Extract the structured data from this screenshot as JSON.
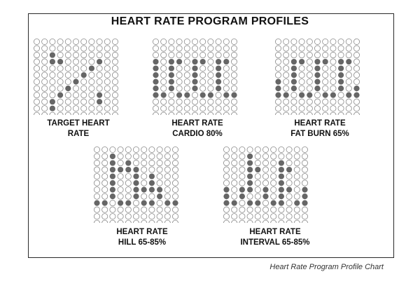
{
  "title": "HEART RATE PROGRAM PROFILES",
  "caption": "Heart Rate Program Profile Chart",
  "colors": {
    "filled": "#666666",
    "empty_stroke": "#8a8a8a",
    "frame": "#2a2a2a"
  },
  "profiles": [
    {
      "label_line1": "TARGET HEART",
      "label_line2": "RATE",
      "pattern": [
        "...........",
        "...........",
        "..#........",
        "..##....#..",
        ".......#...",
        "......#....",
        ".....#.....",
        "....#......",
        "...#....#..",
        "..#.....#..",
        "..#........",
        "..........."
      ]
    },
    {
      "label_line1": "HEART RATE",
      "label_line2": "CARDIO 80%",
      "pattern": [
        "...........",
        "...........",
        "...........",
        "#.##.##.##.",
        "#.#..#..#..",
        "#.#..#..#..",
        "#.#..#..#..",
        "#.#..#..#..",
        "##.##.##.##",
        "...........",
        "...........",
        "..........."
      ]
    },
    {
      "label_line1": "HEART RATE",
      "label_line2": "FAT BURN 65%",
      "pattern": [
        "...........",
        "...........",
        "...........",
        "..##.##.##.",
        "..#..#..#..",
        "..#..#..#..",
        "#.#..#..#..",
        "#.#..#..#.#",
        "##.##.##.##",
        "...........",
        "...........",
        "..........."
      ]
    },
    {
      "label_line1": "HEART RATE",
      "label_line2": "HILL 65-85%",
      "pattern": [
        "...........",
        "..#........",
        "..#.#......",
        "..####.....",
        "..#..#.#...",
        "..#..#.#...",
        "..#..####..",
        "..#..#..#..",
        "##.##.##.##",
        "...........",
        "...........",
        "..........."
      ]
    },
    {
      "label_line1": "HEART RATE",
      "label_line2": "INTERVAL 65-85%",
      "pattern": [
        "...........",
        "...#.......",
        "...#...#...",
        "...##..##..",
        "...#...#...",
        "...#...#...",
        "#.##.#.##.#",
        "#.#..#.#..#",
        "##.##.##.##",
        "...........",
        "...........",
        "..........."
      ]
    }
  ]
}
